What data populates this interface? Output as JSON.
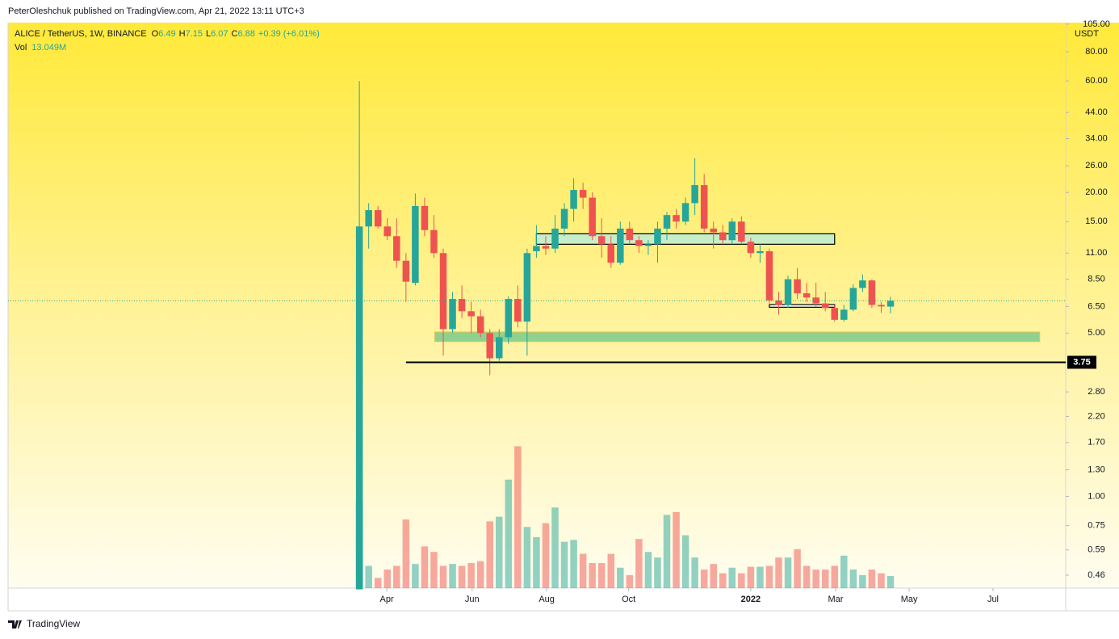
{
  "header": {
    "publisher": "PeterOleshchuk published on TradingView.com, Apr 21, 2022 13:11 UTC+3",
    "logo": "TradingView"
  },
  "chart_data": {
    "type": "candlestick",
    "legend": {
      "symbol": "ALICE / TetherUS, 1W, BINANCE",
      "letters": [
        "O",
        "H",
        "L",
        "C"
      ],
      "change": "+0.39 (+6.01%)",
      "vol_label": "Vol",
      "vol_value": "13.049M"
    },
    "y_unit": "USDT",
    "categories": [
      null,
      null,
      null,
      null,
      null,
      null,
      null,
      null,
      null,
      null,
      null,
      null,
      null,
      null,
      null,
      null,
      null,
      null,
      null,
      null,
      null,
      null,
      null,
      null,
      null,
      null,
      null,
      null,
      null,
      null,
      null,
      null,
      null,
      null,
      null,
      null,
      null,
      null,
      null,
      null,
      null,
      null,
      null,
      null,
      null,
      null,
      null,
      null,
      null,
      null,
      null,
      null,
      null,
      null,
      null,
      null,
      null,
      null
    ],
    "open": [
      0.4,
      14.3,
      16.8,
      14.3,
      13,
      10.2,
      8.2,
      17.5,
      13.8,
      11,
      5.2,
      7,
      6.2,
      5.9,
      5.0,
      3.9,
      4.8,
      7.0,
      5.6,
      11.2,
      11.8,
      11.5,
      14,
      17,
      20.5,
      19,
      13,
      12,
      10,
      14,
      12.5,
      11.8,
      12,
      14,
      16,
      15,
      18,
      21.5,
      14,
      13.5,
      12.5,
      15,
      12.3,
      11,
      11.2,
      6.9,
      6.6,
      8.5,
      7.4,
      7.1,
      6.7,
      6.4,
      5.7,
      6.3,
      7.8,
      8.4,
      6.6,
      6.49
    ],
    "high": [
      60,
      18,
      17.5,
      15.5,
      15.5,
      11,
      19.8,
      19,
      16,
      11.5,
      7.5,
      8,
      6.8,
      6.3,
      5.2,
      5.2,
      7.2,
      8,
      11.5,
      14.5,
      13,
      16,
      18,
      23,
      22,
      20,
      15.5,
      13,
      15,
      15,
      13,
      12.5,
      15,
      16.5,
      17,
      19,
      28,
      24,
      15,
      14.5,
      15.5,
      15.8,
      12.8,
      12,
      11.5,
      7.5,
      8.8,
      9.5,
      8.2,
      8.2,
      7.5,
      6.6,
      6.6,
      8.1,
      8.9,
      8.5,
      6.8,
      7.15
    ],
    "low": [
      0.4,
      11.5,
      14,
      12.5,
      9.5,
      6.8,
      8,
      13,
      10.5,
      4.0,
      5,
      5.8,
      5,
      4.8,
      3.3,
      3.8,
      4.5,
      5.3,
      4.0,
      10.5,
      10.8,
      11,
      13,
      15,
      17,
      12.5,
      10.5,
      9.5,
      9.8,
      12,
      11,
      10.8,
      10,
      12.5,
      14,
      14.5,
      16,
      13.5,
      11.5,
      12,
      12,
      12,
      10.5,
      10,
      6.7,
      6.0,
      6.4,
      7,
      6.8,
      6.5,
      6.2,
      5.6,
      5.6,
      6.2,
      7.5,
      6.4,
      6.1,
      6.07
    ],
    "close": [
      14.3,
      16.8,
      14.3,
      13,
      10.2,
      8.3,
      17.5,
      13.8,
      11,
      5.2,
      7,
      6.2,
      5.9,
      5.0,
      3.9,
      4.8,
      7.0,
      5.6,
      11,
      11.8,
      11.5,
      14,
      17,
      20.5,
      19,
      13,
      12,
      10,
      14,
      12.5,
      11.8,
      12,
      14,
      16,
      15,
      18,
      21.5,
      14,
      13.5,
      12.5,
      15,
      12.3,
      11,
      11.2,
      6.9,
      6.6,
      8.5,
      7.4,
      7.1,
      6.7,
      6.4,
      5.7,
      6.3,
      7.8,
      8.4,
      6.6,
      6.5,
      6.88
    ],
    "volume": [
      94,
      24,
      11,
      20,
      24,
      74,
      26,
      45,
      39,
      24,
      26,
      24,
      27,
      29,
      72,
      77,
      117,
      153,
      66,
      55,
      70,
      87,
      50,
      52,
      37,
      27,
      27,
      37,
      22,
      14,
      53,
      39,
      33,
      79,
      82,
      57,
      33,
      20,
      26,
      16,
      22,
      16,
      23,
      23,
      24,
      33,
      33,
      42,
      24,
      20,
      20,
      24,
      35,
      20,
      14,
      20,
      16,
      13.049
    ],
    "up_color": "#26a69a",
    "down_color": "#ef5350",
    "vol_up_color": "#26a69a",
    "vol_down_color": "#ef5350",
    "log_scale": true,
    "ylim": [
      0.405,
      106.6
    ],
    "yticks": [
      {
        "value": 105,
        "label": "105.00"
      },
      {
        "value": 80,
        "label": "80.00"
      },
      {
        "value": 60,
        "label": "60.00"
      },
      {
        "value": 44,
        "label": "44.00"
      },
      {
        "value": 34,
        "label": "34.00"
      },
      {
        "value": 26,
        "label": "26.00"
      },
      {
        "value": 20,
        "label": "20.00"
      },
      {
        "value": 15,
        "label": "15.00"
      },
      {
        "value": 11,
        "label": "11.00"
      },
      {
        "value": 8.5,
        "label": "8.50"
      },
      {
        "value": 6.5,
        "label": "6.50"
      },
      {
        "value": 5,
        "label": "5.00"
      },
      {
        "value": 2.8,
        "label": "2.80"
      },
      {
        "value": 2.2,
        "label": "2.20"
      },
      {
        "value": 1.7,
        "label": "1.70"
      },
      {
        "value": 1.3,
        "label": "1.30"
      },
      {
        "value": 1,
        "label": "1.00"
      },
      {
        "value": 0.75,
        "label": "0.75"
      },
      {
        "value": 0.59,
        "label": "0.59"
      },
      {
        "value": 0.46,
        "label": "0.46"
      }
    ],
    "y2lim": [
      0,
      610
    ],
    "xlim": [
      -37.7,
      75.8
    ],
    "xticks": [
      {
        "value": 2.94,
        "label": "Apr"
      },
      {
        "value": 12.1,
        "label": "Jun"
      },
      {
        "value": 20.1,
        "label": "Aug"
      },
      {
        "value": 28.9,
        "label": "Oct"
      },
      {
        "value": 42.0,
        "label": "2022"
      },
      {
        "value": 51.1,
        "label": "Mar"
      },
      {
        "value": 59.0,
        "label": "May"
      },
      {
        "value": 68.0,
        "label": "Jul"
      }
    ],
    "levels": [
      {
        "value": 3.75,
        "label": "3.75",
        "x": [
          5.0,
          75.8
        ],
        "color": "#000000"
      }
    ],
    "zones": [
      {
        "low": 4.6,
        "high": 5.05,
        "x": [
          8.1,
          73.0
        ],
        "fill": "#8fd18f",
        "stroke": "#d8c850"
      },
      {
        "low": 12.0,
        "high": 13.3,
        "x": [
          19.0,
          51.0
        ],
        "fill": "#c8eec8",
        "stroke": "#000000"
      },
      {
        "low": 6.45,
        "high": 6.62,
        "x": [
          44.0,
          51.0
        ],
        "fill": "#ffffff",
        "stroke": "#000000"
      }
    ]
  }
}
